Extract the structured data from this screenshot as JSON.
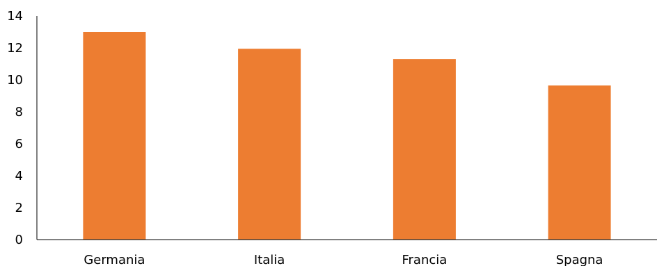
{
  "chart_data": {
    "type": "bar",
    "title": "",
    "xlabel": "",
    "ylabel": "",
    "categories": [
      "Germania",
      "Italia",
      "Francia",
      "Spagna"
    ],
    "values": [
      13.0,
      11.95,
      11.3,
      9.65
    ],
    "ylim": [
      0,
      14
    ],
    "yticks": [
      0,
      2,
      4,
      6,
      8,
      10,
      12,
      14
    ],
    "ytick_labels": [
      "0",
      "2",
      "4",
      "6",
      "8",
      "10",
      "12",
      "14"
    ],
    "grid": false,
    "legend": "none",
    "bar_color": "#ED7D31"
  }
}
